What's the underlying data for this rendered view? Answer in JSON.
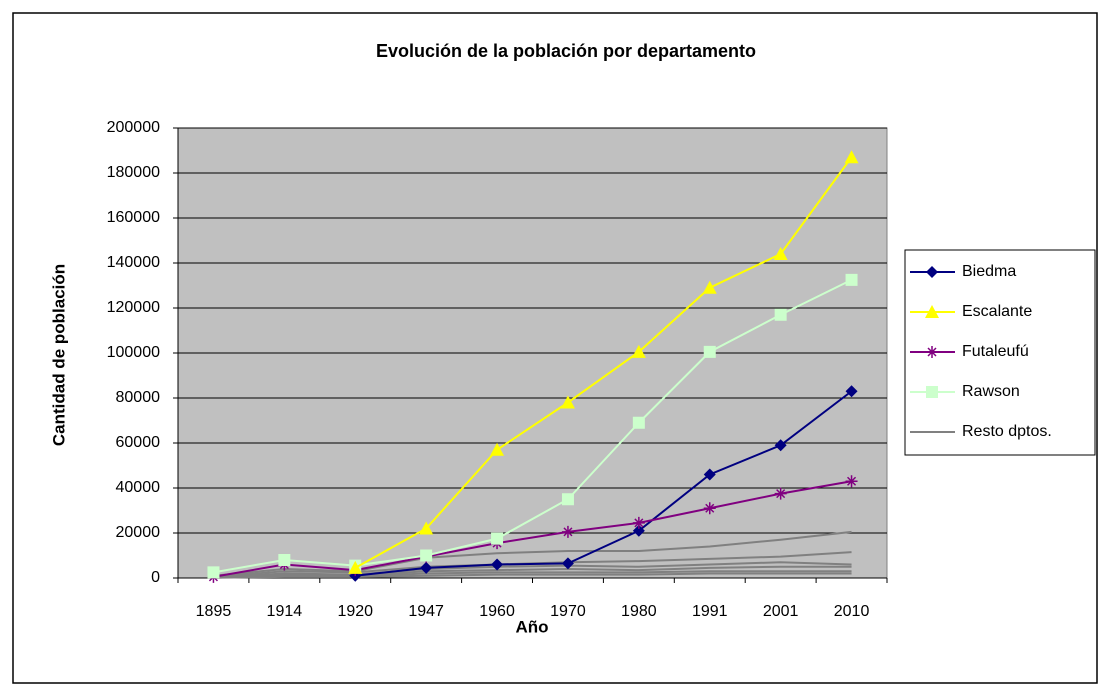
{
  "chart_data": {
    "type": "line",
    "title": "Evolución de la población por departamento",
    "x_label": "Año",
    "y_label": "Cantidad de población",
    "categories": [
      "1895",
      "1914",
      "1920",
      "1947",
      "1960",
      "1970",
      "1980",
      "1991",
      "2001",
      "2010"
    ],
    "ylim": [
      0,
      200000
    ],
    "yticks": [
      0,
      20000,
      40000,
      60000,
      80000,
      100000,
      120000,
      140000,
      160000,
      180000,
      200000
    ],
    "grid": true,
    "legend": "right",
    "series": [
      {
        "name": "Biedma",
        "color": "#000080",
        "marker": "diamond",
        "values": [
          null,
          null,
          1000,
          4500,
          6000,
          6500,
          21000,
          46000,
          59000,
          83000
        ]
      },
      {
        "name": "Escalante",
        "color": "#ffff00",
        "marker": "triangle",
        "values": [
          null,
          null,
          4500,
          22000,
          57000,
          78000,
          100500,
          129000,
          144000,
          187000
        ]
      },
      {
        "name": "Futaleufú",
        "color": "#800080",
        "marker": "star",
        "values": [
          500,
          6000,
          3500,
          9500,
          15500,
          20500,
          24500,
          31000,
          37500,
          43000
        ]
      },
      {
        "name": "Rawson",
        "color": "#ccffcc",
        "marker": "square",
        "values": [
          2500,
          8000,
          5500,
          10000,
          17500,
          35000,
          69000,
          100500,
          117000,
          132500
        ]
      },
      {
        "name": "Resto dptos.",
        "color": "#808080",
        "marker": "none",
        "lines": [
          [
            1000,
            4000,
            3000,
            9000,
            11000,
            12000,
            12000,
            14000,
            17000,
            20500
          ],
          [
            500,
            3000,
            2500,
            5000,
            6000,
            7000,
            7500,
            8500,
            9500,
            11500
          ],
          [
            300,
            2000,
            1500,
            4000,
            5000,
            5500,
            5000,
            6000,
            7000,
            6000
          ],
          [
            200,
            1500,
            1000,
            3000,
            3500,
            4000,
            3500,
            4500,
            5000,
            5000
          ],
          [
            100,
            1000,
            800,
            2000,
            2500,
            2500,
            2500,
            3000,
            3000,
            3000
          ],
          [
            100,
            500,
            500,
            1000,
            1500,
            1500,
            1500,
            2000,
            2000,
            2000
          ]
        ]
      }
    ]
  }
}
